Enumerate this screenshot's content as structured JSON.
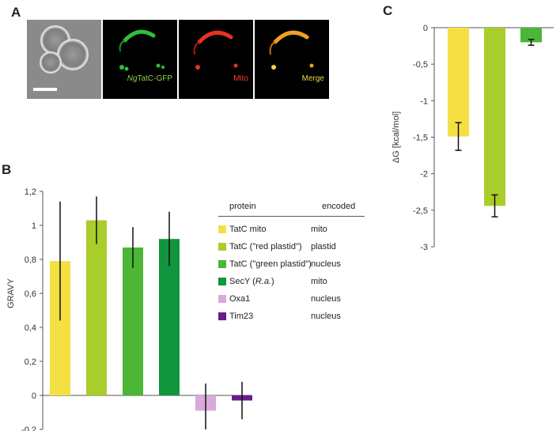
{
  "panels": {
    "a": "A",
    "b": "B",
    "c": "C"
  },
  "micrographs": [
    {
      "label_italic": "",
      "label": "",
      "color": ""
    },
    {
      "label_italic": "Ng",
      "label": "TatC-GFP",
      "color": "#8fd14f"
    },
    {
      "label_italic": "",
      "label": "Mito",
      "color": "#ff3b2f"
    },
    {
      "label_italic": "",
      "label": "Merge",
      "color": "#f2d640"
    }
  ],
  "chart_data": [
    {
      "id": "B",
      "type": "bar",
      "ylabel": "GRAVY",
      "ylim": [
        -0.2,
        1.2
      ],
      "yticks": [
        "1,2",
        "1",
        "0,8",
        "0,6",
        "0,4",
        "0,2",
        "0",
        "-0,2"
      ],
      "ytick_values": [
        1.2,
        1.0,
        0.8,
        0.6,
        0.4,
        0.2,
        0,
        -0.2
      ],
      "categories": [
        "TatC mito",
        "TatC (\"red plastid\")",
        "TatC (\"green plastid\")",
        "SecY (R.a.)",
        "Oxa1",
        "Tim23"
      ],
      "values": [
        0.79,
        1.03,
        0.87,
        0.92,
        -0.09,
        -0.03
      ],
      "errors": [
        0.35,
        0.14,
        0.12,
        0.16,
        0.16,
        0.11
      ],
      "colors": [
        "#f5e043",
        "#a9cd2b",
        "#4cb636",
        "#11963d",
        "#d9aadb",
        "#6a1b8f"
      ],
      "legend": {
        "headers": [
          "protein",
          "encoded"
        ],
        "rows": [
          {
            "protein": "TatC mito",
            "encoded": "mito"
          },
          {
            "protein": "TatC  (\"red plastid\")",
            "encoded": "plastid"
          },
          {
            "protein": "TatC (\"green plastid\")",
            "encoded": "nucleus"
          },
          {
            "protein": "SecY (",
            "protein_italic": "R.a.",
            "protein_end": ")",
            "encoded": "mito"
          },
          {
            "protein": "Oxa1",
            "encoded": "nucleus"
          },
          {
            "protein": "Tim23",
            "encoded": "nucleus"
          }
        ]
      }
    },
    {
      "id": "C",
      "type": "bar",
      "ylabel": "ΔG [kcal/mol]",
      "ylim": [
        -3,
        0
      ],
      "yticks": [
        "0",
        "-0,5",
        "-1",
        "-1,5",
        "-2",
        "-2,5",
        "-3"
      ],
      "ytick_values": [
        0,
        -0.5,
        -1,
        -1.5,
        -2,
        -2.5,
        -3
      ],
      "values": [
        -1.49,
        -2.44,
        -0.2
      ],
      "errors": [
        0.19,
        0.15,
        0.04
      ],
      "colors": [
        "#f5e043",
        "#a9cd2b",
        "#4cb636"
      ]
    }
  ]
}
